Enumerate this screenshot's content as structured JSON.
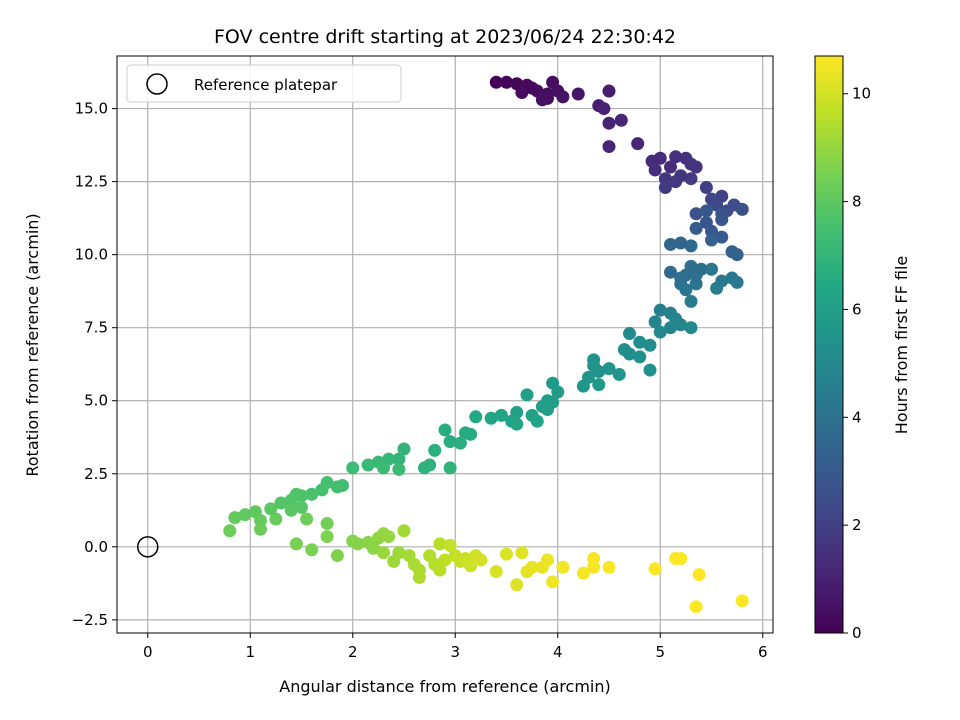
{
  "chart_data": {
    "type": "scatter",
    "title": "FOV centre drift starting at 2023/06/24 22:30:42",
    "xlabel": "Angular distance from reference (arcmin)",
    "ylabel": "Rotation from reference (arcmin)",
    "xlim": [
      -0.3,
      6.1
    ],
    "ylim": [
      -2.95,
      16.8
    ],
    "xticks": [
      0,
      1,
      2,
      3,
      4,
      5,
      6
    ],
    "xtick_labels": [
      "0",
      "1",
      "2",
      "3",
      "4",
      "5",
      "6"
    ],
    "yticks": [
      -2.5,
      0,
      2.5,
      5,
      7.5,
      10,
      12.5,
      15
    ],
    "ytick_labels": [
      "−2.5",
      "0.0",
      "2.5",
      "5.0",
      "7.5",
      "10.0",
      "12.5",
      "15.0"
    ],
    "grid": true,
    "legend": {
      "placement": "top-left",
      "entries": [
        "Reference platepar"
      ]
    },
    "reference_point": {
      "x": 0,
      "y": 0
    },
    "colorbar": {
      "label": "Hours from first FF file",
      "range": [
        0,
        10.7
      ],
      "ticks": [
        0,
        2,
        4,
        6,
        8,
        10
      ],
      "tick_labels": [
        "0",
        "2",
        "4",
        "6",
        "8",
        "10"
      ],
      "colormap": "viridis"
    },
    "points": [
      [
        3.4,
        15.9,
        0.05
      ],
      [
        3.5,
        15.9,
        0.1
      ],
      [
        3.6,
        15.85,
        0.15
      ],
      [
        3.7,
        15.8,
        0.2
      ],
      [
        3.75,
        15.7,
        0.25
      ],
      [
        3.8,
        15.6,
        0.3
      ],
      [
        3.9,
        15.5,
        0.35
      ],
      [
        3.95,
        15.9,
        0.4
      ],
      [
        4.0,
        15.6,
        0.45
      ],
      [
        3.85,
        15.3,
        0.5
      ],
      [
        4.05,
        15.4,
        0.55
      ],
      [
        4.2,
        15.5,
        0.6
      ],
      [
        3.65,
        15.55,
        0.3
      ],
      [
        3.9,
        15.35,
        0.4
      ],
      [
        4.4,
        15.1,
        0.8
      ],
      [
        4.5,
        15.6,
        0.9
      ],
      [
        4.45,
        15.0,
        1.0
      ],
      [
        4.5,
        14.5,
        1.05
      ],
      [
        4.62,
        14.6,
        1.1
      ],
      [
        4.5,
        13.7,
        1.15
      ],
      [
        4.78,
        13.8,
        1.2
      ],
      [
        4.92,
        13.2,
        1.3
      ],
      [
        5.0,
        13.3,
        1.35
      ],
      [
        5.1,
        13.0,
        1.4
      ],
      [
        5.15,
        13.35,
        1.5
      ],
      [
        5.25,
        13.3,
        1.55
      ],
      [
        5.3,
        13.1,
        1.6
      ],
      [
        4.95,
        12.9,
        1.45
      ],
      [
        5.05,
        12.6,
        1.7
      ],
      [
        5.15,
        12.5,
        1.75
      ],
      [
        5.3,
        12.6,
        1.8
      ],
      [
        5.05,
        12.3,
        1.85
      ],
      [
        5.2,
        12.7,
        1.65
      ],
      [
        5.35,
        13.0,
        1.6
      ],
      [
        5.45,
        12.3,
        2.0
      ],
      [
        5.6,
        12.0,
        2.1
      ],
      [
        5.5,
        11.9,
        2.2
      ],
      [
        5.55,
        11.7,
        2.3
      ],
      [
        5.65,
        11.5,
        2.4
      ],
      [
        5.72,
        11.7,
        2.5
      ],
      [
        5.8,
        11.55,
        2.6
      ],
      [
        5.35,
        11.4,
        2.7
      ],
      [
        5.45,
        11.1,
        2.8
      ],
      [
        5.6,
        11.2,
        2.85
      ],
      [
        5.5,
        10.8,
        2.9
      ],
      [
        5.6,
        10.6,
        3.0
      ],
      [
        5.45,
        11.5,
        2.9
      ],
      [
        5.35,
        10.9,
        3.1
      ],
      [
        5.5,
        10.5,
        3.2
      ],
      [
        5.7,
        10.1,
        3.3
      ],
      [
        5.75,
        10.0,
        3.4
      ],
      [
        5.6,
        11.4,
        2.75
      ],
      [
        5.1,
        10.35,
        3.5
      ],
      [
        5.2,
        10.4,
        3.55
      ],
      [
        5.3,
        10.3,
        3.6
      ],
      [
        5.1,
        9.4,
        3.7
      ],
      [
        5.25,
        9.3,
        3.8
      ],
      [
        5.3,
        9.6,
        3.9
      ],
      [
        5.4,
        9.5,
        3.95
      ],
      [
        5.2,
        9.0,
        4.0
      ],
      [
        5.25,
        8.8,
        4.1
      ],
      [
        5.35,
        9.0,
        4.15
      ],
      [
        5.5,
        9.5,
        4.2
      ],
      [
        5.6,
        9.1,
        4.25
      ],
      [
        5.7,
        9.2,
        4.3
      ],
      [
        5.75,
        9.05,
        4.35
      ],
      [
        5.55,
        8.85,
        4.4
      ],
      [
        5.3,
        8.4,
        4.45
      ],
      [
        5.2,
        9.2,
        4.0
      ],
      [
        5.35,
        9.3,
        3.85
      ],
      [
        5.0,
        8.1,
        4.6
      ],
      [
        5.1,
        8.0,
        4.65
      ],
      [
        5.15,
        7.8,
        4.7
      ],
      [
        4.95,
        7.7,
        4.8
      ],
      [
        5.1,
        7.5,
        4.85
      ],
      [
        5.2,
        7.6,
        4.9
      ],
      [
        5.3,
        7.5,
        5.0
      ],
      [
        5.0,
        7.35,
        4.95
      ],
      [
        4.7,
        7.3,
        5.1
      ],
      [
        4.8,
        7.0,
        5.15
      ],
      [
        4.9,
        6.9,
        5.2
      ],
      [
        4.7,
        6.6,
        5.25
      ],
      [
        4.8,
        6.5,
        5.3
      ],
      [
        4.9,
        6.05,
        5.35
      ],
      [
        4.65,
        6.75,
        5.2
      ],
      [
        4.35,
        6.4,
        5.4
      ],
      [
        4.4,
        6.0,
        5.45
      ],
      [
        4.5,
        6.1,
        5.5
      ],
      [
        4.6,
        5.9,
        5.55
      ],
      [
        4.3,
        5.8,
        5.6
      ],
      [
        4.25,
        5.5,
        5.65
      ],
      [
        4.4,
        5.55,
        5.7
      ],
      [
        4.35,
        6.2,
        5.5
      ],
      [
        3.95,
        5.6,
        5.8
      ],
      [
        4.0,
        5.3,
        5.85
      ],
      [
        3.9,
        5.0,
        5.9
      ],
      [
        3.85,
        4.8,
        5.95
      ],
      [
        3.7,
        5.2,
        6.0
      ],
      [
        3.6,
        4.6,
        6.05
      ],
      [
        3.75,
        4.5,
        6.1
      ],
      [
        3.55,
        4.3,
        6.15
      ],
      [
        3.8,
        4.3,
        6.2
      ],
      [
        3.6,
        4.2,
        6.25
      ],
      [
        3.45,
        4.5,
        6.3
      ],
      [
        3.35,
        4.4,
        6.35
      ],
      [
        3.2,
        4.45,
        6.4
      ],
      [
        3.9,
        4.7,
        5.95
      ],
      [
        3.95,
        4.95,
        5.9
      ],
      [
        3.1,
        3.9,
        6.5
      ],
      [
        3.15,
        3.85,
        6.55
      ],
      [
        2.9,
        4.0,
        6.6
      ],
      [
        2.95,
        3.6,
        6.65
      ],
      [
        3.05,
        3.55,
        6.7
      ],
      [
        2.8,
        3.3,
        6.75
      ],
      [
        2.75,
        2.8,
        6.8
      ],
      [
        2.7,
        2.7,
        6.85
      ],
      [
        2.95,
        2.7,
        6.9
      ],
      [
        2.5,
        3.35,
        6.95
      ],
      [
        2.45,
        3.0,
        7.0
      ],
      [
        2.35,
        3.0,
        7.05
      ],
      [
        2.25,
        2.9,
        7.1
      ],
      [
        2.15,
        2.8,
        7.15
      ],
      [
        2.45,
        2.65,
        7.2
      ],
      [
        2.3,
        2.7,
        7.25
      ],
      [
        2.0,
        2.7,
        7.3
      ],
      [
        1.9,
        2.1,
        7.4
      ],
      [
        1.85,
        2.05,
        7.45
      ],
      [
        1.75,
        2.2,
        7.5
      ],
      [
        1.7,
        1.95,
        7.55
      ],
      [
        1.6,
        1.8,
        7.6
      ],
      [
        1.5,
        1.75,
        7.65
      ],
      [
        1.45,
        1.8,
        7.7
      ],
      [
        1.4,
        1.6,
        7.75
      ],
      [
        1.3,
        1.5,
        7.8
      ],
      [
        1.5,
        1.35,
        7.85
      ],
      [
        1.4,
        1.25,
        7.9
      ],
      [
        1.2,
        1.3,
        7.95
      ],
      [
        1.05,
        1.2,
        8.0
      ],
      [
        0.95,
        1.1,
        8.05
      ],
      [
        0.85,
        1.0,
        8.1
      ],
      [
        1.1,
        0.9,
        8.15
      ],
      [
        1.25,
        0.95,
        8.2
      ],
      [
        1.1,
        0.6,
        8.25
      ],
      [
        0.8,
        0.55,
        8.3
      ],
      [
        1.55,
        0.95,
        8.35
      ],
      [
        1.75,
        0.8,
        8.4
      ],
      [
        1.45,
        0.1,
        8.5
      ],
      [
        1.6,
        -0.1,
        8.55
      ],
      [
        1.75,
        0.35,
        8.6
      ],
      [
        1.85,
        -0.3,
        8.65
      ],
      [
        2.0,
        0.2,
        8.7
      ],
      [
        2.05,
        0.1,
        8.75
      ],
      [
        2.15,
        0.15,
        8.8
      ],
      [
        2.2,
        -0.05,
        8.85
      ],
      [
        2.25,
        0.3,
        8.9
      ],
      [
        2.3,
        0.45,
        8.95
      ],
      [
        2.35,
        0.35,
        9.0
      ],
      [
        2.3,
        -0.2,
        9.05
      ],
      [
        2.4,
        -0.5,
        9.1
      ],
      [
        2.45,
        -0.2,
        9.15
      ],
      [
        2.5,
        0.55,
        9.2
      ],
      [
        2.55,
        -0.3,
        9.25
      ],
      [
        2.6,
        -0.6,
        9.3
      ],
      [
        2.65,
        -0.8,
        9.35
      ],
      [
        2.65,
        -1.05,
        9.4
      ],
      [
        2.75,
        -0.3,
        9.45
      ],
      [
        2.8,
        -0.6,
        9.5
      ],
      [
        2.85,
        0.1,
        9.55
      ],
      [
        2.85,
        -0.8,
        9.6
      ],
      [
        2.9,
        -0.45,
        9.65
      ],
      [
        2.95,
        0.05,
        9.7
      ],
      [
        3.0,
        -0.3,
        9.75
      ],
      [
        3.05,
        -0.5,
        9.8
      ],
      [
        3.1,
        -0.4,
        9.85
      ],
      [
        3.15,
        -0.65,
        9.9
      ],
      [
        3.2,
        -0.3,
        9.95
      ],
      [
        3.25,
        -0.45,
        10.0
      ],
      [
        3.4,
        -0.85,
        10.05
      ],
      [
        3.5,
        -0.25,
        10.1
      ],
      [
        3.6,
        -1.3,
        10.15
      ],
      [
        3.65,
        -0.2,
        10.2
      ],
      [
        3.7,
        -0.85,
        10.25
      ],
      [
        3.75,
        -0.7,
        10.3
      ],
      [
        3.85,
        -0.7,
        10.35
      ],
      [
        3.9,
        -0.45,
        10.4
      ],
      [
        3.95,
        -1.2,
        10.45
      ],
      [
        4.05,
        -0.7,
        10.5
      ],
      [
        4.25,
        -0.9,
        10.55
      ],
      [
        4.35,
        -0.7,
        10.6
      ],
      [
        4.35,
        -0.4,
        10.62
      ],
      [
        4.5,
        -0.7,
        10.65
      ],
      [
        4.95,
        -0.75,
        10.67
      ],
      [
        5.15,
        -0.4,
        10.69
      ],
      [
        5.2,
        -0.4,
        10.7
      ],
      [
        5.35,
        -2.05,
        10.7
      ],
      [
        5.38,
        -0.95,
        10.7
      ],
      [
        5.8,
        -1.85,
        10.7
      ]
    ]
  }
}
